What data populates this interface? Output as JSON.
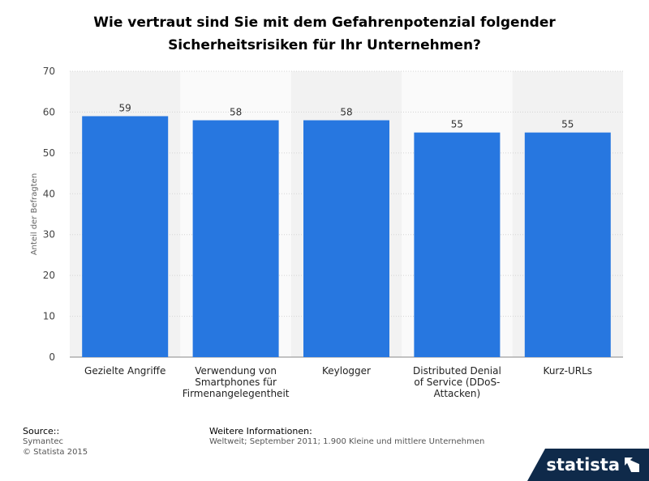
{
  "title_lines": [
    "Wie vertraut sind Sie mit dem Gefahrenpotenzial folgender",
    "Sicherheitsrisiken für Ihr Unternehmen?"
  ],
  "chart_data": {
    "type": "bar",
    "categories": [
      [
        "Gezielte Angriffe"
      ],
      [
        "Verwendung von",
        "Smartphones für",
        "Firmenangelegentheit"
      ],
      [
        "Keylogger"
      ],
      [
        "Distributed Denial",
        "of Service (DDoS-",
        "Attacken)"
      ],
      [
        "Kurz-URLs"
      ]
    ],
    "values": [
      59,
      58,
      58,
      55,
      55
    ],
    "ylabel": "Anteil der Befragten",
    "xlabel": "",
    "ylim": [
      0,
      70
    ],
    "yticks": [
      0,
      10,
      20,
      30,
      40,
      50,
      60,
      70
    ],
    "bar_color": "#2777e0",
    "grid": true
  },
  "source": {
    "label": "Source::",
    "name": "Symantec",
    "copyright": "© Statista 2015"
  },
  "info": {
    "label": "Weitere Informationen:",
    "text": "Weltweit; September 2011; 1.900 Kleine und mittlere Unternehmen"
  },
  "brand": {
    "name": "statista"
  }
}
